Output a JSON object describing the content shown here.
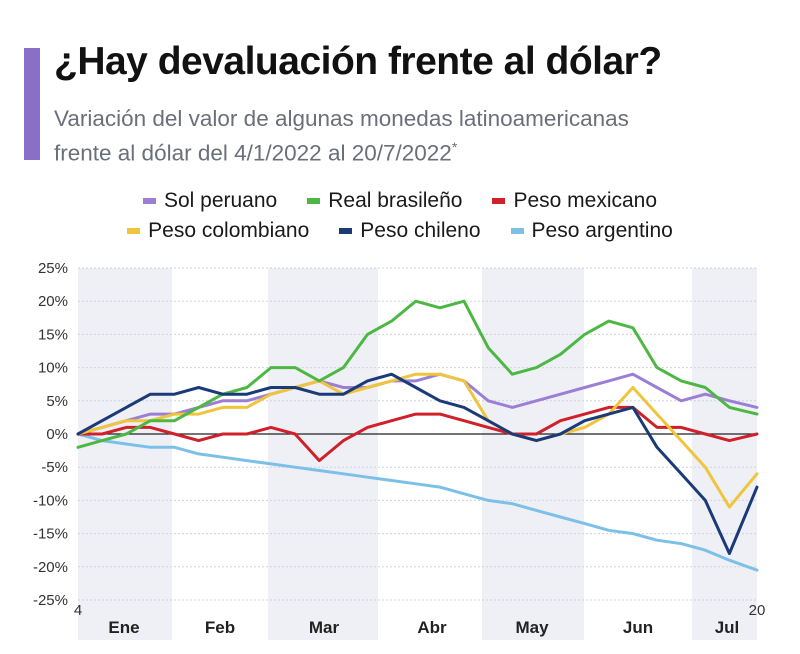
{
  "header": {
    "title": "¿Hay devaluación frente al dólar?",
    "subtitle_line1": "Variación del valor de algunas monedas latinoamericanas",
    "subtitle_line2": "frente al dólar del 4/1/2022 al 20/7/2022",
    "subtitle_mark": "*",
    "accent_color": "#8a6fc9"
  },
  "chart_data": {
    "type": "line",
    "title": "¿Hay devaluación frente al dólar?",
    "xlabel": "",
    "ylabel": "",
    "ylim": [
      -25,
      25
    ],
    "yticks": [
      25,
      20,
      15,
      10,
      5,
      0,
      -5,
      -10,
      -15,
      -20,
      -25
    ],
    "ytick_labels": [
      "25%",
      "20%",
      "15%",
      "10%",
      "5%",
      "0%",
      "-5%",
      "-10%",
      "-15%",
      "-20%",
      "-25%"
    ],
    "x_start_label": "4",
    "x_end_label": "20",
    "months": [
      "Ene",
      "Feb",
      "Mar",
      "Abr",
      "May",
      "Jun",
      "Jul"
    ],
    "grid": true,
    "legend_position": "top",
    "x": [
      0,
      7,
      14,
      21,
      28,
      35,
      42,
      49,
      56,
      63,
      70,
      77,
      84,
      91,
      98,
      105,
      112,
      119,
      126,
      133,
      140,
      147,
      154,
      161,
      168,
      175,
      182,
      189,
      197
    ],
    "series": [
      {
        "name": "Sol peruano",
        "color": "#9c7fd4",
        "values": [
          0,
          1,
          2,
          3,
          3,
          4,
          5,
          5,
          6,
          7,
          8,
          7,
          7,
          8,
          8,
          9,
          8,
          5,
          4,
          5,
          6,
          7,
          8,
          9,
          7,
          5,
          6,
          5,
          4
        ]
      },
      {
        "name": "Real brasileño",
        "color": "#4cb843",
        "values": [
          -2,
          -1,
          0,
          2,
          2,
          4,
          6,
          7,
          10,
          10,
          8,
          10,
          15,
          17,
          20,
          19,
          20,
          13,
          9,
          10,
          12,
          15,
          17,
          16,
          10,
          8,
          7,
          4,
          3
        ]
      },
      {
        "name": "Peso mexicano",
        "color": "#d0202a",
        "values": [
          0,
          0,
          1,
          1,
          0,
          -1,
          0,
          0,
          1,
          0,
          -4,
          -1,
          1,
          2,
          3,
          3,
          2,
          1,
          0,
          0,
          2,
          3,
          4,
          4,
          1,
          1,
          0,
          -1,
          0
        ]
      },
      {
        "name": "Peso colombiano",
        "color": "#f0c43c",
        "values": [
          0,
          1,
          2,
          2,
          3,
          3,
          4,
          4,
          6,
          7,
          8,
          6,
          7,
          8,
          9,
          9,
          8,
          2,
          0,
          -1,
          0,
          1,
          3,
          7,
          3,
          -1,
          -5,
          -11,
          -6
        ]
      },
      {
        "name": "Peso chileno",
        "color": "#1a3a78",
        "values": [
          0,
          2,
          4,
          6,
          6,
          7,
          6,
          6,
          7,
          7,
          6,
          6,
          8,
          9,
          7,
          5,
          4,
          2,
          0,
          -1,
          0,
          2,
          3,
          4,
          -2,
          -6,
          -10,
          -18,
          -8
        ]
      },
      {
        "name": "Peso argentino",
        "color": "#7cc0e8",
        "values": [
          0,
          -1,
          -1.5,
          -2,
          -2,
          -3,
          -3.5,
          -4,
          -4.5,
          -5,
          -5.5,
          -6,
          -6.5,
          -7,
          -7.5,
          -8,
          -9,
          -10,
          -10.5,
          -11.5,
          -12.5,
          -13.5,
          -14.5,
          -15,
          -16,
          -16.5,
          -17.5,
          -19,
          -20.5
        ]
      }
    ]
  },
  "legend": {
    "row1": [
      "Sol peruano",
      "Real brasileño",
      "Peso mexicano"
    ],
    "row2": [
      "Peso colombiano",
      "Peso chileno",
      "Peso argentino"
    ]
  }
}
